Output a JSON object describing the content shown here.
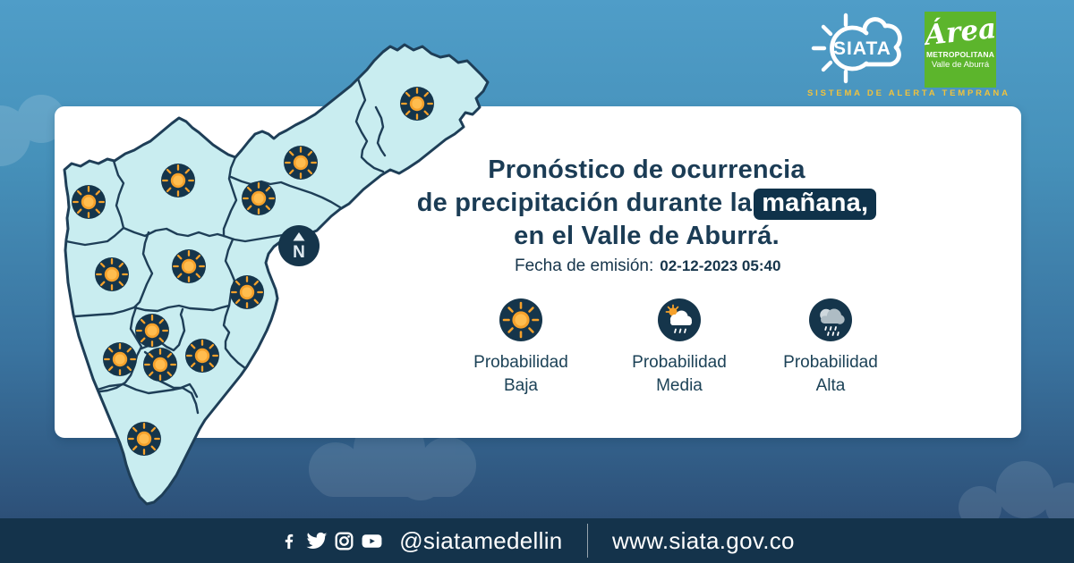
{
  "brand": {
    "siata": "SIATA",
    "tagline": "SISTEMA DE ALERTA TEMPRANA",
    "area_line1": "Área",
    "area_line2": "METROPOLITANA",
    "area_line3": "Valle de Aburrá"
  },
  "forecast_card": {
    "title_line1": "Pronóstico de ocurrencia",
    "title_line2": "de precipitación durante la",
    "title_highlight": "mañana,",
    "title_line3": "en el Valle de Aburrá.",
    "emission_label": "Fecha de emisión:",
    "emission_datetime": "02-12-2023 05:40",
    "legend": [
      {
        "icon": "sun-icon",
        "label1": "Probabilidad",
        "label2": "Baja"
      },
      {
        "icon": "sun-cloud-rain-icon",
        "label1": "Probabilidad",
        "label2": "Media"
      },
      {
        "icon": "rain-cloud-icon",
        "label1": "Probabilidad",
        "label2": "Alta"
      }
    ]
  },
  "map": {
    "compass": "N",
    "marker_icon": "sun-icon",
    "marker_count": 13
  },
  "footer": {
    "handle": "@siatamedellin",
    "website": "www.siata.gov.co"
  },
  "colors": {
    "navy": "#15354b",
    "title_navy": "#1b3c55",
    "accent_orange": "#f5a12b",
    "map_fill": "#c9edf0",
    "map_stroke": "#1e3e57",
    "footer_bg": "#14334b",
    "green_logo": "#5cb52c",
    "tagline_yellow": "#f0c23d",
    "highlight_bg": "#0f324a"
  }
}
